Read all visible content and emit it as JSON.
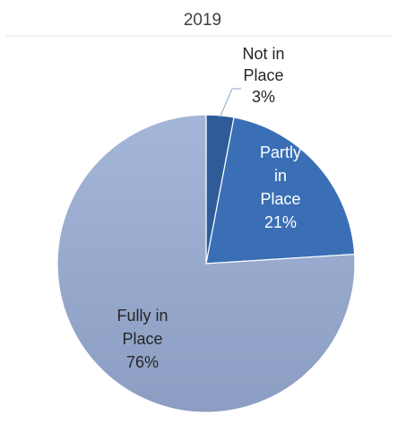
{
  "chart_data": {
    "type": "pie",
    "title": "2019",
    "slices": [
      {
        "name": "Not in Place",
        "label_lines": [
          "Not in",
          "Place"
        ],
        "value": 3,
        "value_label": "3%",
        "color": "#2f5c99",
        "label_color": "#262626"
      },
      {
        "name": "Partly in Place",
        "label_lines": [
          "Partly",
          "in",
          "Place"
        ],
        "value": 21,
        "value_label": "21%",
        "color": "#3a6fb5",
        "label_color": "#ffffff"
      },
      {
        "name": "Fully in Place",
        "label_lines": [
          "Fully in",
          "Place"
        ],
        "value": 76,
        "value_label": "76%",
        "color": "#97a9cc",
        "label_color": "#262626"
      }
    ],
    "legend": "none",
    "edge_color": "#ffffff"
  }
}
